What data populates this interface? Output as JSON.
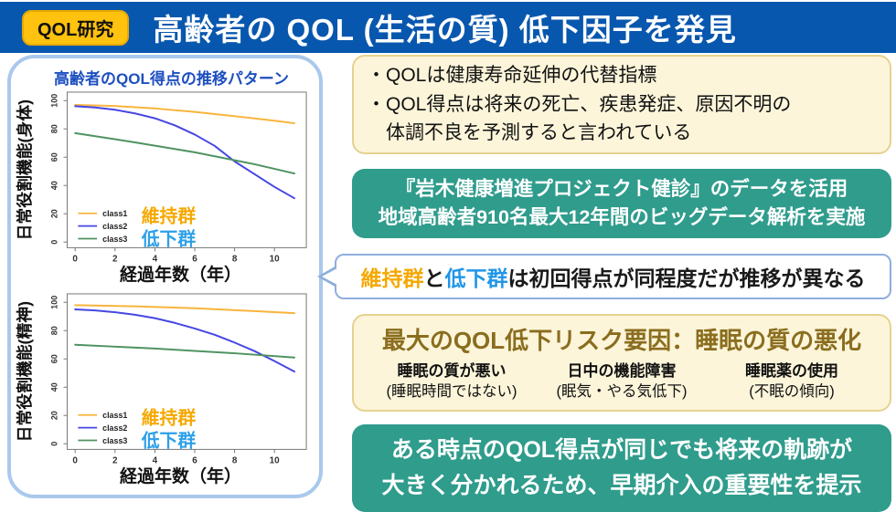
{
  "header": {
    "badge": "QOL研究",
    "title": "高齢者の QOL (生活の質) 低下因子を発見"
  },
  "chart_panel": {
    "title": "高齢者のQOL得点の推移パターン"
  },
  "chart_data": [
    {
      "type": "line",
      "title": "高齢者のQOL得点の推移パターン",
      "ylabel": "日常役割機能(身体)",
      "xlabel": "経過年数（年）",
      "xlim": [
        0,
        11
      ],
      "ylim": [
        0,
        100
      ],
      "xticks": [
        0,
        2,
        4,
        6,
        8,
        10
      ],
      "yticks": [
        0,
        20,
        40,
        60,
        80,
        100
      ],
      "grid": false,
      "legend_position": "lower-left-inside",
      "series": [
        {
          "name": "class1",
          "group": "維持群",
          "color": "#F9B43C",
          "points": [
            [
              0,
              97
            ],
            [
              2,
              96.2
            ],
            [
              4,
              94.5
            ],
            [
              6,
              92
            ],
            [
              8,
              89
            ],
            [
              10,
              85.8
            ],
            [
              11,
              84
            ]
          ]
        },
        {
          "name": "class2",
          "group": "低下群",
          "color": "#4647E2",
          "points": [
            [
              0,
              96
            ],
            [
              1,
              95.2
            ],
            [
              2,
              93.5
            ],
            [
              3,
              91
            ],
            [
              4,
              87.5
            ],
            [
              5,
              82.5
            ],
            [
              6,
              76
            ],
            [
              7,
              68
            ],
            [
              8,
              57
            ],
            [
              9,
              48
            ],
            [
              10,
              39
            ],
            [
              11,
              31
            ]
          ]
        },
        {
          "name": "class3",
          "group": "",
          "color": "#4E9360",
          "points": [
            [
              0,
              77
            ],
            [
              3,
              70.5
            ],
            [
              6,
              63.5
            ],
            [
              9,
              55
            ],
            [
              11,
              48.5
            ]
          ]
        }
      ],
      "annotations": [
        {
          "text": "維持群",
          "color": "#F5A800"
        },
        {
          "text": "低下群",
          "color": "#2DA0E8"
        }
      ]
    },
    {
      "type": "line",
      "title": "高齢者のQOL得点の推移パターン",
      "ylabel": "日常役割機能(精神)",
      "xlabel": "経過年数（年）",
      "xlim": [
        0,
        11
      ],
      "ylim": [
        0,
        100
      ],
      "xticks": [
        0,
        2,
        4,
        6,
        8,
        10
      ],
      "yticks": [
        0,
        20,
        40,
        60,
        80,
        100
      ],
      "grid": false,
      "legend_position": "lower-left-inside",
      "series": [
        {
          "name": "class1",
          "group": "維持群",
          "color": "#F9B43C",
          "points": [
            [
              0,
              98
            ],
            [
              3,
              97.2
            ],
            [
              6,
              95.8
            ],
            [
              9,
              93.8
            ],
            [
              11,
              92.3
            ]
          ]
        },
        {
          "name": "class2",
          "group": "低下群",
          "color": "#4647E2",
          "points": [
            [
              0,
              95
            ],
            [
              1,
              94.3
            ],
            [
              2,
              93
            ],
            [
              3,
              91.2
            ],
            [
              4,
              88.8
            ],
            [
              5,
              85.5
            ],
            [
              6,
              81.5
            ],
            [
              7,
              77
            ],
            [
              8,
              71.5
            ],
            [
              9,
              65.5
            ],
            [
              10,
              58.5
            ],
            [
              11,
              51
            ]
          ]
        },
        {
          "name": "class3",
          "group": "",
          "color": "#4E9360",
          "points": [
            [
              0,
              70
            ],
            [
              4,
              67.3
            ],
            [
              8,
              64
            ],
            [
              11,
              61
            ]
          ]
        }
      ],
      "annotations": [
        {
          "text": "維持群",
          "color": "#F5A800"
        },
        {
          "text": "低下群",
          "color": "#2DA0E8"
        }
      ]
    }
  ],
  "boxes": {
    "background": {
      "lines": [
        "・QOLは健康寿命延伸の代替指標",
        "・QOL得点は将来の死亡、疾患発症、原因不明の",
        "　体調不良を予測すると言われている"
      ]
    },
    "dataset": {
      "lines": [
        "『岩木健康増進プロジェクト健診』のデータを活用",
        "地域高齢者910名最大12年間のビッグデータ解析を実施"
      ]
    },
    "finding": {
      "segments": [
        {
          "text": "維持群",
          "color": "#F5A800"
        },
        {
          "text": "と",
          "color": "#1a1a1a"
        },
        {
          "text": "低下群",
          "color": "#2196E8"
        },
        {
          "text": "は初回得点が同程度だが推移が異なる",
          "color": "#1a1a1a"
        }
      ]
    },
    "risk": {
      "heading": "最大のQOL低下リスク要因：睡眠の質の悪化",
      "items": [
        {
          "title": "睡眠の質が悪い",
          "sub": "(睡眠時間ではない)"
        },
        {
          "title": "日中の機能障害",
          "sub": "(眠気・やる気低下)"
        },
        {
          "title": "睡眠薬の使用",
          "sub": "(不眠の傾向)"
        }
      ]
    },
    "conclusion": {
      "lines": [
        "ある時点のQOL得点が同じでも将来の軌跡が",
        "大きく分かれるため、早期介入の重要性を提示"
      ]
    }
  },
  "colors": {
    "header_bg": "#0857AE",
    "badge_bg": "#FFC20E",
    "teal": "#2F9C8C",
    "cream_bg": "#FCF5DA",
    "cream_border": "#E5D28F",
    "panel_border": "#A9C8EC",
    "chart_title_blue": "#1D4FC0",
    "risk_heading_gold": "#8A6D1E",
    "maintain_group_orange": "#F5A800",
    "decline_group_blue": "#2196E8"
  }
}
